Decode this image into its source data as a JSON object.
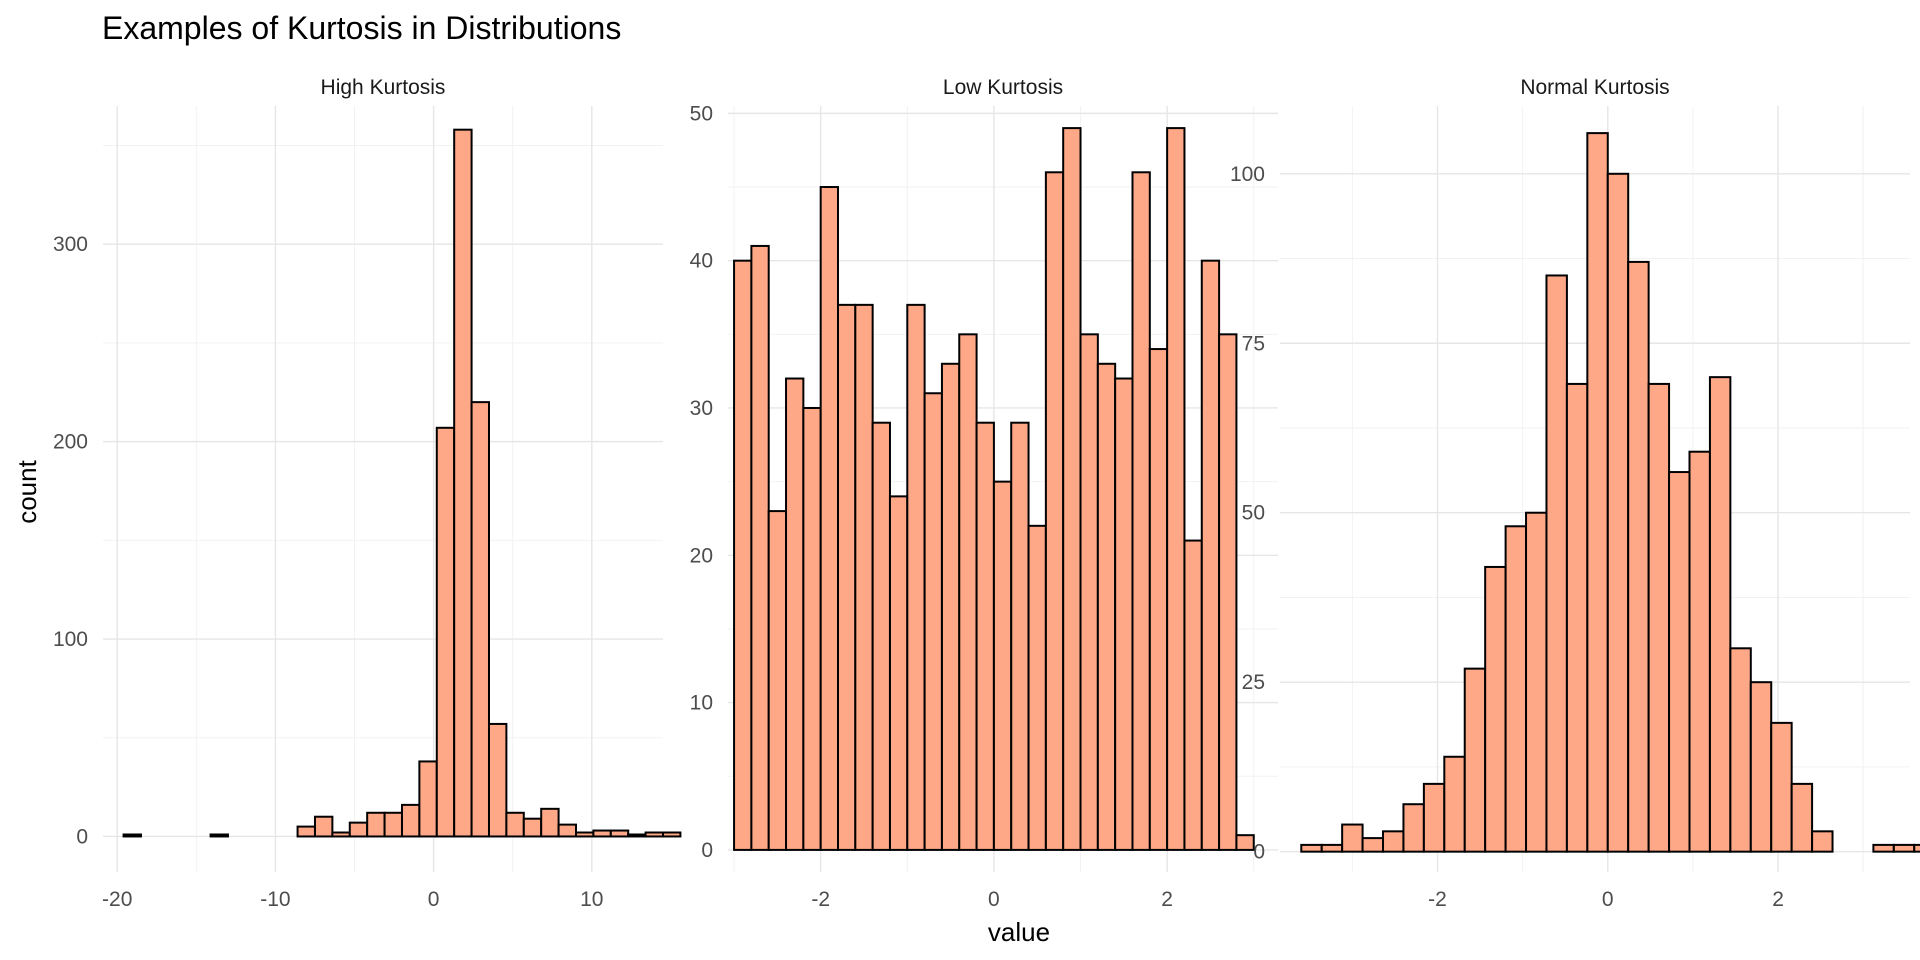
{
  "chart_data": {
    "type": "bar",
    "title": "Examples of Kurtosis in Distributions",
    "xlabel": "value",
    "ylabel": "count",
    "bar_fill": "#FFA888",
    "bar_stroke": "#000000",
    "grid": true,
    "facets": [
      {
        "name": "High Kurtosis",
        "xlim": [
          -20.9,
          14.5
        ],
        "ylim": [
          -18,
          370
        ],
        "x_ticks": [
          -20,
          -10,
          0,
          10
        ],
        "y_ticks": [
          0,
          100,
          200,
          300
        ],
        "bin_width": 1.1,
        "bin_start": -19.6,
        "values": [
          1,
          0,
          0,
          0,
          0,
          1,
          0,
          0,
          0,
          0,
          5,
          10,
          2,
          7,
          12,
          12,
          16,
          38,
          207,
          358,
          220,
          57,
          12,
          9,
          14,
          6,
          2,
          3,
          3,
          1,
          2,
          2
        ]
      },
      {
        "name": "Low Kurtosis",
        "xlim": [
          -3.07,
          3.28
        ],
        "ylim": [
          -1.5,
          50.5
        ],
        "x_ticks": [
          -2,
          0,
          2
        ],
        "y_ticks": [
          0,
          10,
          20,
          30,
          40,
          50
        ],
        "bin_width": 0.2,
        "bin_start": -3.0,
        "values": [
          40,
          41,
          23,
          32,
          30,
          45,
          37,
          37,
          29,
          24,
          37,
          31,
          33,
          35,
          29,
          25,
          29,
          22,
          46,
          49,
          35,
          33,
          32,
          46,
          34,
          49,
          21,
          40,
          35,
          1
        ]
      },
      {
        "name": "Normal Kurtosis",
        "xlim": [
          -3.85,
          3.55
        ],
        "ylim": [
          -3,
          110
        ],
        "x_ticks": [
          -2,
          0,
          2
        ],
        "y_ticks": [
          0,
          25,
          50,
          75,
          100
        ],
        "bin_width": 0.24,
        "bin_start": -3.6,
        "values": [
          1,
          1,
          4,
          2,
          3,
          7,
          10,
          14,
          27,
          42,
          48,
          50,
          85,
          69,
          106,
          100,
          87,
          69,
          56,
          59,
          70,
          30,
          25,
          19,
          10,
          3,
          0,
          0,
          1,
          1,
          1
        ]
      }
    ]
  }
}
